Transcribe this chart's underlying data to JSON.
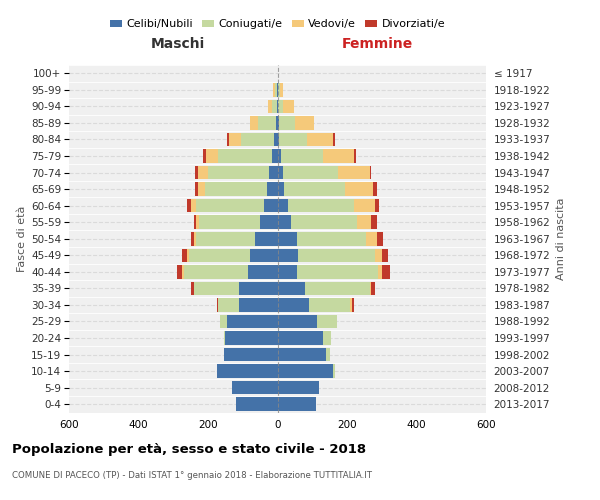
{
  "age_groups": [
    "0-4",
    "5-9",
    "10-14",
    "15-19",
    "20-24",
    "25-29",
    "30-34",
    "35-39",
    "40-44",
    "45-49",
    "50-54",
    "55-59",
    "60-64",
    "65-69",
    "70-74",
    "75-79",
    "80-84",
    "85-89",
    "90-94",
    "95-99",
    "100+"
  ],
  "birth_years": [
    "2013-2017",
    "2008-2012",
    "2003-2007",
    "1998-2002",
    "1993-1997",
    "1988-1992",
    "1983-1987",
    "1978-1982",
    "1973-1977",
    "1968-1972",
    "1963-1967",
    "1958-1962",
    "1953-1957",
    "1948-1952",
    "1943-1947",
    "1938-1942",
    "1933-1937",
    "1928-1932",
    "1923-1927",
    "1918-1922",
    "≤ 1917"
  ],
  "colors": {
    "celibi": "#4472a8",
    "coniugati": "#c5d9a0",
    "vedovi": "#f5c97a",
    "divorziati": "#c0392b"
  },
  "maschi": {
    "celibi": [
      120,
      130,
      175,
      155,
      150,
      145,
      110,
      110,
      85,
      80,
      65,
      50,
      40,
      30,
      25,
      15,
      10,
      5,
      2,
      2,
      0
    ],
    "coniugati": [
      0,
      0,
      0,
      0,
      5,
      20,
      60,
      130,
      185,
      175,
      170,
      175,
      195,
      180,
      175,
      155,
      95,
      50,
      15,
      5,
      0
    ],
    "vedovi": [
      0,
      0,
      0,
      0,
      0,
      0,
      0,
      0,
      5,
      5,
      5,
      10,
      15,
      20,
      30,
      35,
      35,
      25,
      10,
      5,
      0
    ],
    "divorziati": [
      0,
      0,
      0,
      0,
      0,
      0,
      5,
      10,
      15,
      15,
      10,
      5,
      10,
      8,
      8,
      10,
      5,
      0,
      0,
      0,
      0
    ]
  },
  "femmine": {
    "celibi": [
      110,
      120,
      160,
      140,
      130,
      115,
      90,
      80,
      55,
      60,
      55,
      40,
      30,
      20,
      15,
      10,
      5,
      5,
      2,
      2,
      0
    ],
    "coniugati": [
      0,
      0,
      5,
      10,
      25,
      55,
      120,
      185,
      235,
      220,
      200,
      190,
      190,
      175,
      160,
      120,
      80,
      45,
      15,
      5,
      0
    ],
    "vedovi": [
      0,
      0,
      0,
      0,
      0,
      0,
      5,
      5,
      10,
      20,
      30,
      40,
      60,
      80,
      90,
      90,
      75,
      55,
      30,
      10,
      2
    ],
    "divorziati": [
      0,
      0,
      0,
      0,
      0,
      0,
      5,
      10,
      25,
      18,
      18,
      15,
      12,
      10,
      5,
      5,
      5,
      0,
      0,
      0,
      0
    ]
  },
  "xlim": 600,
  "title": "Popolazione per età, sesso e stato civile - 2018",
  "subtitle": "COMUNE DI PACECO (TP) - Dati ISTAT 1° gennaio 2018 - Elaborazione TUTTITALIA.IT",
  "ylabel_left": "Fasce di età",
  "ylabel_right": "Anni di nascita",
  "header_left": "Maschi",
  "header_right": "Femmine",
  "legend_labels": [
    "Celibi/Nubili",
    "Coniugati/e",
    "Vedovi/e",
    "Divorziati/e"
  ],
  "bg_color": "#f0f0f0",
  "grid_color": "#cccccc",
  "center_line_color": "#888888"
}
